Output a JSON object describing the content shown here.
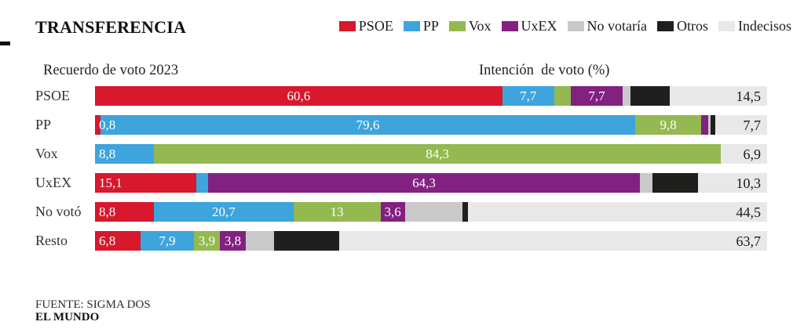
{
  "title": "TRANSFERENCIA",
  "headers": {
    "left": "Recuerdo de voto 2023",
    "right": "Intención  de voto (%)"
  },
  "legend": [
    {
      "name": "PSOE",
      "label": "PSOE",
      "color": "#d7182d"
    },
    {
      "name": "PP",
      "label": "PP",
      "color": "#3da4dc"
    },
    {
      "name": "Vox",
      "label": "Vox",
      "color": "#93b950"
    },
    {
      "name": "UxEX",
      "label": "UxEX",
      "color": "#832180"
    },
    {
      "name": "No votaría",
      "label": "No votaría",
      "color": "#c9c9c9"
    },
    {
      "name": "Otros",
      "label": "Otros",
      "color": "#1f1f1d"
    },
    {
      "name": "Indecisos",
      "label": "Indecisos",
      "color": "#e8e8e8"
    }
  ],
  "footer": {
    "source": "FUENTE: SIGMA DOS",
    "brand": "EL MUNDO"
  },
  "chart_data": {
    "type": "bar",
    "stacked": true,
    "orientation": "horizontal",
    "unit": "%",
    "title": "TRANSFERENCIA",
    "xlabel": "Intención de voto (%)",
    "ylabel": "Recuerdo de voto 2023",
    "xlim": [
      0,
      100
    ],
    "categories": [
      "PSOE",
      "PP",
      "Vox",
      "UxEX",
      "No votó",
      "Resto"
    ],
    "series_names": [
      "PSOE",
      "PP",
      "Vox",
      "UxEX",
      "No votaría",
      "Otros",
      "Indecisos"
    ],
    "rows": [
      {
        "category": "PSOE",
        "segments": [
          {
            "party": "PSOE",
            "value": 60.6,
            "label": "60,6",
            "align": "center"
          },
          {
            "party": "PP",
            "value": 7.7,
            "label": "7,7",
            "align": "center"
          },
          {
            "party": "Vox",
            "value": 2.5
          },
          {
            "party": "UxEX",
            "value": 7.7,
            "label": "7,7",
            "align": "center"
          },
          {
            "party": "No votaría",
            "value": 1.2
          },
          {
            "party": "Otros",
            "value": 5.8
          },
          {
            "party": "Indecisos",
            "value": 14.5,
            "label": "14,5",
            "align": "right-dark"
          }
        ]
      },
      {
        "category": "PP",
        "segments": [
          {
            "party": "PSOE",
            "value": 0.8,
            "label": "0,8",
            "align": "left"
          },
          {
            "party": "PP",
            "value": 79.6,
            "label": "79,6",
            "align": "center"
          },
          {
            "party": "Vox",
            "value": 9.8,
            "label": "9,8",
            "align": "center"
          },
          {
            "party": "UxEX",
            "value": 1.0
          },
          {
            "party": "No votaría",
            "value": 0.4
          },
          {
            "party": "Otros",
            "value": 0.7
          },
          {
            "party": "Indecisos",
            "value": 7.7,
            "label": "7,7",
            "align": "right-dark"
          }
        ]
      },
      {
        "category": "Vox",
        "segments": [
          {
            "party": "PP",
            "value": 8.8,
            "label": "8,8",
            "align": "left"
          },
          {
            "party": "Vox",
            "value": 84.3,
            "label": "84,3",
            "align": "center"
          },
          {
            "party": "Indecisos",
            "value": 6.9,
            "label": "6,9",
            "align": "right-dark"
          }
        ]
      },
      {
        "category": "UxEX",
        "segments": [
          {
            "party": "PSOE",
            "value": 15.1,
            "label": "15,1",
            "align": "left"
          },
          {
            "party": "PP",
            "value": 1.7
          },
          {
            "party": "UxEX",
            "value": 64.3,
            "label": "64,3",
            "align": "center"
          },
          {
            "party": "No votaría",
            "value": 1.9
          },
          {
            "party": "Otros",
            "value": 6.7
          },
          {
            "party": "Indecisos",
            "value": 10.3,
            "label": "10,3",
            "align": "right-dark"
          }
        ]
      },
      {
        "category": "No votó",
        "segments": [
          {
            "party": "PSOE",
            "value": 8.8,
            "label": "8,8",
            "align": "left"
          },
          {
            "party": "PP",
            "value": 20.7,
            "label": "20,7",
            "align": "center"
          },
          {
            "party": "Vox",
            "value": 13,
            "label": "13",
            "align": "center"
          },
          {
            "party": "UxEX",
            "value": 3.6,
            "label": "3,6",
            "align": "center"
          },
          {
            "party": "No votaría",
            "value": 8.6
          },
          {
            "party": "Otros",
            "value": 0.8
          },
          {
            "party": "Indecisos",
            "value": 44.5,
            "label": "44,5",
            "align": "right-dark"
          }
        ]
      },
      {
        "category": "Resto",
        "segments": [
          {
            "party": "PSOE",
            "value": 6.8,
            "label": "6,8",
            "align": "left"
          },
          {
            "party": "PP",
            "value": 7.9,
            "label": "7,9",
            "align": "center"
          },
          {
            "party": "Vox",
            "value": 3.9,
            "label": "3,9",
            "align": "center"
          },
          {
            "party": "UxEX",
            "value": 3.8,
            "label": "3,8",
            "align": "center"
          },
          {
            "party": "No votaría",
            "value": 4.2
          },
          {
            "party": "Otros",
            "value": 9.7
          },
          {
            "party": "Indecisos",
            "value": 63.7,
            "label": "63,7",
            "align": "right-dark"
          }
        ]
      }
    ]
  }
}
